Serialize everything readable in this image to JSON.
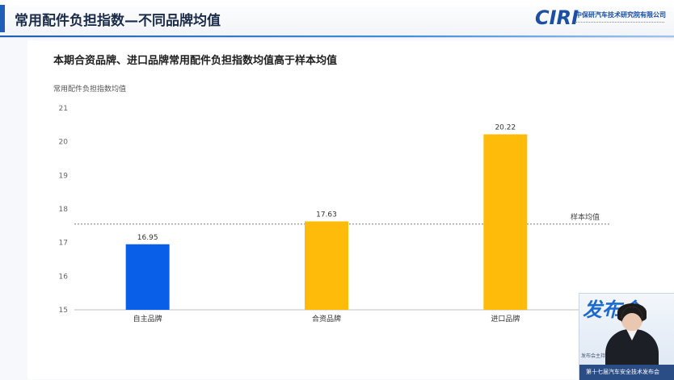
{
  "header": {
    "title": "常用配件负担指数—不同品牌均值",
    "logo_mark": "CIRI",
    "logo_name": "中保研汽车技术研究院有限公司",
    "accent_color": "#1f5fb8"
  },
  "subtitle": "本期合资品牌、进口品牌常用配件负担指数均值高于样本均值",
  "chart_data": {
    "type": "bar",
    "ylabel": "常用配件负担指数均值",
    "categories": [
      "自主品牌",
      "合资品牌",
      "进口品牌"
    ],
    "values": [
      16.95,
      17.63,
      20.22
    ],
    "value_labels": [
      "16.95",
      "17.63",
      "20.22"
    ],
    "colors": [
      "#0a5fe8",
      "#ffbb0a",
      "#ffbb0a"
    ],
    "ylim": [
      15,
      21
    ],
    "yticks": [
      15,
      16,
      17,
      18,
      19,
      20,
      21
    ],
    "reference_line": {
      "label": "样本均值",
      "value": 17.55
    },
    "grid": false,
    "legend": "none"
  },
  "inset": {
    "banner": "发布会",
    "caption": "第十七届汽车安全技术发布会",
    "side_text": "发布会主持"
  }
}
